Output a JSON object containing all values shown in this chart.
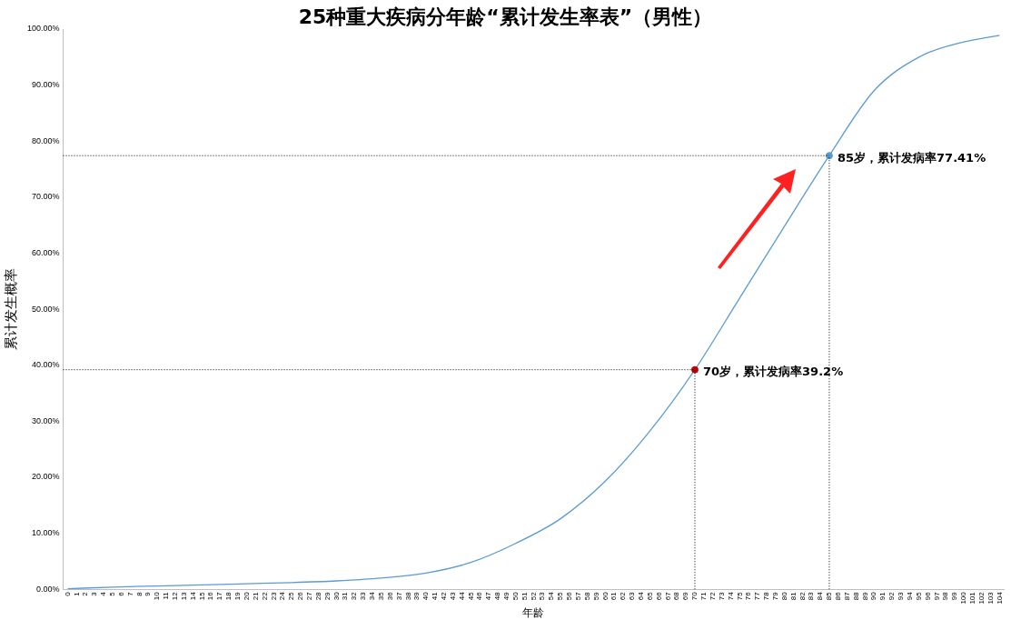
{
  "chart_data": {
    "type": "line",
    "title": "25种重大疾病分年龄“累计发生率表”（男性）",
    "xlabel": "年龄",
    "ylabel": "累计发生概率",
    "xlim": [
      -0.5,
      104.5
    ],
    "xticks": [
      0,
      1,
      2,
      3,
      4,
      5,
      6,
      7,
      8,
      9,
      10,
      11,
      12,
      13,
      14,
      15,
      16,
      17,
      18,
      19,
      20,
      21,
      22,
      23,
      24,
      25,
      26,
      27,
      28,
      29,
      30,
      31,
      32,
      33,
      34,
      35,
      36,
      37,
      38,
      39,
      40,
      41,
      42,
      43,
      44,
      45,
      46,
      47,
      48,
      49,
      50,
      51,
      52,
      53,
      54,
      55,
      56,
      57,
      58,
      59,
      60,
      61,
      62,
      63,
      64,
      65,
      66,
      67,
      68,
      69,
      70,
      71,
      72,
      73,
      74,
      75,
      76,
      77,
      78,
      79,
      80,
      81,
      82,
      83,
      84,
      85,
      86,
      87,
      88,
      89,
      90,
      91,
      92,
      93,
      94,
      95,
      96,
      97,
      98,
      99,
      100,
      101,
      102,
      103,
      104
    ],
    "ylim": [
      0,
      100
    ],
    "yticks": [
      {
        "value": 0,
        "label": "0.00%"
      },
      {
        "value": 10,
        "label": "10.00%"
      },
      {
        "value": 20,
        "label": "20.00%"
      },
      {
        "value": 30,
        "label": "30.00%"
      },
      {
        "value": 40,
        "label": "40.00%"
      },
      {
        "value": 50,
        "label": "50.00%"
      },
      {
        "value": 60,
        "label": "60.00%"
      },
      {
        "value": 70,
        "label": "70.00%"
      },
      {
        "value": 80,
        "label": "80.00%"
      },
      {
        "value": 90,
        "label": "90.00%"
      },
      {
        "value": 100,
        "label": "100.00%"
      }
    ],
    "grid": false,
    "legend": false,
    "marker": "none",
    "line_style": "solid",
    "series": [
      {
        "color": "#5b9bd5",
        "x": [
          0,
          5,
          10,
          15,
          20,
          25,
          30,
          35,
          40,
          45,
          50,
          55,
          60,
          65,
          70,
          75,
          80,
          85,
          90,
          95,
          100,
          104
        ],
        "values": [
          0.1,
          0.4,
          0.6,
          0.8,
          1.0,
          1.2,
          1.5,
          2.0,
          2.9,
          4.8,
          8.2,
          12.6,
          19.3,
          28.3,
          39.2,
          52.0,
          64.8,
          77.41,
          89.0,
          95.0,
          97.7,
          98.9
        ]
      },
      {
        "type": "scatter",
        "marker": "circle",
        "x": [
          70,
          85
        ],
        "values": [
          39.2,
          77.41
        ],
        "colors": [
          "#c00000",
          "#5b9bd5"
        ]
      }
    ],
    "ref_lines": [
      {
        "axis": "y",
        "value": 39.2,
        "line_style": "dotted",
        "color": "#000000"
      },
      {
        "axis": "y",
        "value": 77.41,
        "line_style": "dotted",
        "color": "#000000"
      },
      {
        "axis": "x",
        "value": 70,
        "line_style": "dotted",
        "color": "#000000"
      },
      {
        "axis": "x",
        "value": 85,
        "line_style": "dotted",
        "color": "#000000"
      }
    ],
    "annotations": [
      {
        "text": "70岁，累计发病率39.2%",
        "x": 70,
        "y": 39.2
      },
      {
        "text": "85岁，累计发病率77.41%",
        "x": 85,
        "y": 77.41
      }
    ]
  }
}
